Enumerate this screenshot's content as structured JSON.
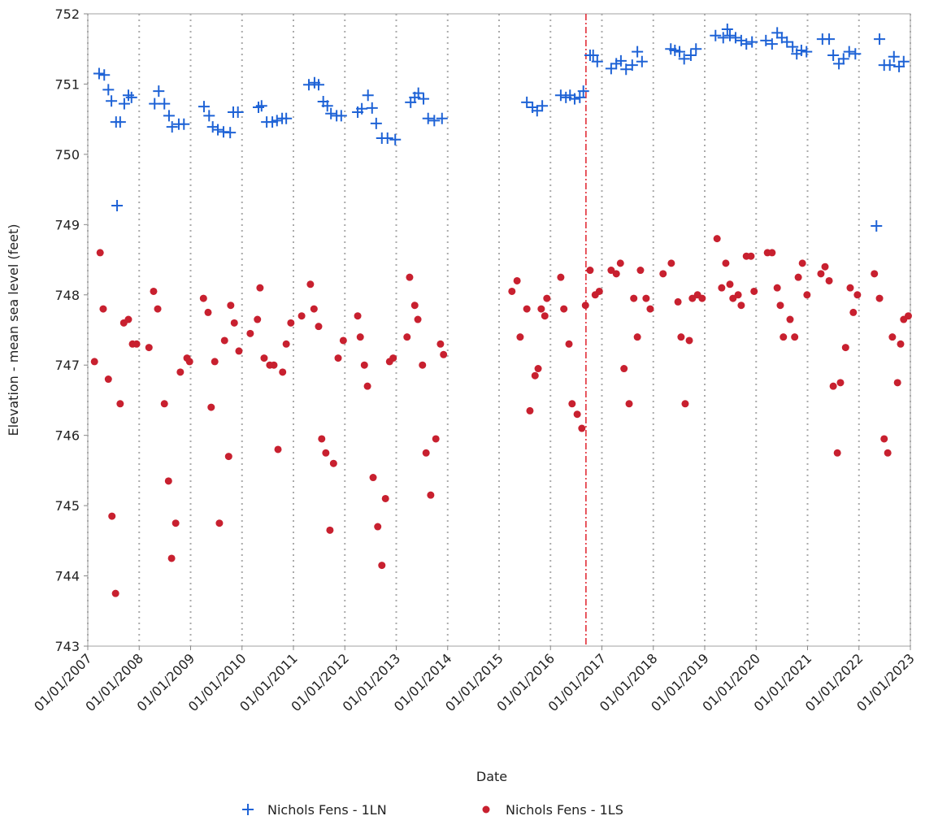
{
  "chart_data": {
    "type": "scatter",
    "x_label": "Date",
    "y_label": "Elevation - mean sea level (feet)",
    "xlim": [
      2007,
      2023
    ],
    "ylim": [
      743,
      752
    ],
    "xticks": [
      {
        "value": 2007,
        "label": "01/01/2007"
      },
      {
        "value": 2008,
        "label": "01/01/2008"
      },
      {
        "value": 2009,
        "label": "01/01/2009"
      },
      {
        "value": 2010,
        "label": "01/01/2010"
      },
      {
        "value": 2011,
        "label": "01/01/2011"
      },
      {
        "value": 2012,
        "label": "01/01/2012"
      },
      {
        "value": 2013,
        "label": "01/01/2013"
      },
      {
        "value": 2014,
        "label": "01/01/2014"
      },
      {
        "value": 2015,
        "label": "01/01/2015"
      },
      {
        "value": 2016,
        "label": "01/01/2016"
      },
      {
        "value": 2017,
        "label": "01/01/2017"
      },
      {
        "value": 2018,
        "label": "01/01/2018"
      },
      {
        "value": 2019,
        "label": "01/01/2019"
      },
      {
        "value": 2020,
        "label": "01/01/2020"
      },
      {
        "value": 2021,
        "label": "01/01/2021"
      },
      {
        "value": 2022,
        "label": "01/01/2022"
      },
      {
        "value": 2023,
        "label": "01/01/2023"
      }
    ],
    "yticks": [
      743,
      744,
      745,
      746,
      747,
      748,
      749,
      750,
      751,
      752
    ],
    "x_grid": true,
    "ref_line_x": 2016.69,
    "ref_line_color": "#e0202a",
    "legend": "bottom",
    "series": [
      {
        "name": "Nichols Fens - 1LN",
        "color": "#1f63d6",
        "marker": "plus",
        "x": [
          2007.22,
          2007.32,
          2007.4,
          2007.46,
          2007.55,
          2007.63,
          2007.57,
          2007.71,
          2007.79,
          2007.85,
          2008.3,
          2008.38,
          2008.49,
          2008.58,
          2008.64,
          2008.77,
          2008.87,
          2009.26,
          2009.36,
          2009.43,
          2009.53,
          2009.64,
          2009.77,
          2009.83,
          2009.92,
          2010.32,
          2010.38,
          2010.48,
          2010.59,
          2010.68,
          2010.78,
          2010.86,
          2011.3,
          2011.41,
          2011.49,
          2011.58,
          2011.66,
          2011.73,
          2011.84,
          2011.93,
          2012.25,
          2012.33,
          2012.45,
          2012.53,
          2012.61,
          2012.72,
          2012.83,
          2012.98,
          2013.28,
          2013.36,
          2013.43,
          2013.53,
          2013.62,
          2013.74,
          2013.89,
          2015.54,
          2015.65,
          2015.74,
          2015.84,
          2016.2,
          2016.3,
          2016.38,
          2016.47,
          2016.57,
          2016.64,
          2016.77,
          2016.83,
          2016.91,
          2017.18,
          2017.28,
          2017.37,
          2017.47,
          2017.59,
          2017.69,
          2017.78,
          2018.34,
          2018.42,
          2018.51,
          2018.6,
          2018.73,
          2018.83,
          2019.21,
          2019.36,
          2019.44,
          2019.49,
          2019.6,
          2019.71,
          2019.81,
          2019.92,
          2020.19,
          2020.31,
          2020.41,
          2020.5,
          2020.6,
          2020.71,
          2020.79,
          2020.88,
          2020.98,
          2021.29,
          2021.42,
          2021.5,
          2021.61,
          2021.7,
          2021.81,
          2021.93,
          2022.34,
          2022.4,
          2022.49,
          2022.6,
          2022.68,
          2022.78,
          2022.87
        ],
        "values": [
          751.15,
          751.13,
          750.92,
          750.76,
          750.46,
          750.46,
          749.27,
          750.72,
          750.84,
          750.81,
          750.72,
          750.9,
          750.72,
          750.55,
          750.39,
          750.43,
          750.43,
          750.68,
          750.55,
          750.39,
          750.35,
          750.32,
          750.31,
          750.6,
          750.6,
          750.67,
          750.69,
          750.46,
          750.46,
          750.48,
          750.51,
          750.51,
          750.99,
          751.02,
          750.99,
          750.75,
          750.69,
          750.58,
          750.55,
          750.55,
          750.6,
          750.65,
          750.84,
          750.66,
          750.44,
          750.23,
          750.23,
          750.21,
          750.74,
          750.81,
          750.87,
          750.79,
          750.51,
          750.48,
          750.51,
          750.74,
          750.67,
          750.62,
          750.69,
          750.84,
          750.81,
          750.84,
          750.79,
          750.81,
          750.9,
          751.41,
          751.41,
          751.32,
          751.22,
          751.29,
          751.33,
          751.21,
          751.27,
          751.46,
          751.32,
          751.5,
          751.48,
          751.46,
          751.36,
          751.41,
          751.5,
          751.69,
          751.66,
          751.78,
          751.69,
          751.66,
          751.62,
          751.57,
          751.6,
          751.62,
          751.57,
          751.73,
          751.66,
          751.6,
          751.53,
          751.43,
          751.48,
          751.46,
          751.64,
          751.64,
          751.41,
          751.29,
          751.36,
          751.46,
          751.43,
          748.98,
          751.64,
          751.27,
          751.27,
          751.39,
          751.25,
          751.32
        ]
      },
      {
        "name": "Nichols Fens - 1LS",
        "color": "#c8202f",
        "marker": "circle",
        "x": [
          2007.13,
          2007.24,
          2007.3,
          2007.4,
          2007.47,
          2007.54,
          2007.63,
          2007.7,
          2007.79,
          2007.87,
          2007.95,
          2008.19,
          2008.28,
          2008.36,
          2008.49,
          2008.57,
          2008.63,
          2008.71,
          2008.8,
          2008.93,
          2008.98,
          2009.25,
          2009.34,
          2009.4,
          2009.47,
          2009.56,
          2009.66,
          2009.74,
          2009.78,
          2009.85,
          2009.94,
          2010.16,
          2010.3,
          2010.35,
          2010.43,
          2010.54,
          2010.62,
          2010.7,
          2010.79,
          2010.86,
          2010.95,
          2011.16,
          2011.33,
          2011.4,
          2011.49,
          2011.55,
          2011.63,
          2011.71,
          2011.78,
          2011.87,
          2011.97,
          2012.25,
          2012.3,
          2012.38,
          2012.44,
          2012.55,
          2012.64,
          2012.72,
          2012.79,
          2012.87,
          2012.94,
          2013.21,
          2013.26,
          2013.36,
          2013.42,
          2013.51,
          2013.58,
          2013.67,
          2013.77,
          2013.86,
          2013.92,
          2015.25,
          2015.35,
          2015.41,
          2015.54,
          2015.6,
          2015.7,
          2015.76,
          2015.82,
          2015.89,
          2015.93,
          2016.2,
          2016.26,
          2016.36,
          2016.42,
          2016.52,
          2016.61,
          2016.68,
          2016.77,
          2016.87,
          2016.95,
          2017.18,
          2017.28,
          2017.36,
          2017.43,
          2017.53,
          2017.62,
          2017.69,
          2017.75,
          2017.86,
          2017.94,
          2018.19,
          2018.35,
          2018.48,
          2018.54,
          2018.62,
          2018.7,
          2018.76,
          2018.86,
          2018.95,
          2019.24,
          2019.33,
          2019.41,
          2019.49,
          2019.55,
          2019.65,
          2019.71,
          2019.81,
          2019.9,
          2019.96,
          2020.22,
          2020.31,
          2020.41,
          2020.47,
          2020.53,
          2020.66,
          2020.75,
          2020.82,
          2020.9,
          2020.99,
          2021.26,
          2021.34,
          2021.42,
          2021.5,
          2021.58,
          2021.64,
          2021.74,
          2021.83,
          2021.89,
          2021.97,
          2022.3,
          2022.4,
          2022.49,
          2022.56,
          2022.65,
          2022.75,
          2022.81,
          2022.87,
          2022.96
        ],
        "values": [
          747.05,
          748.6,
          747.8,
          746.8,
          744.85,
          743.75,
          746.45,
          747.6,
          747.65,
          747.3,
          747.3,
          747.25,
          748.05,
          747.8,
          746.45,
          745.35,
          744.25,
          744.75,
          746.9,
          747.1,
          747.05,
          747.95,
          747.75,
          746.4,
          747.05,
          744.75,
          747.35,
          745.7,
          747.85,
          747.6,
          747.2,
          747.45,
          747.65,
          748.1,
          747.1,
          747.0,
          747.0,
          745.8,
          746.9,
          747.3,
          747.6,
          747.7,
          748.15,
          747.8,
          747.55,
          745.95,
          745.75,
          744.65,
          745.6,
          747.1,
          747.35,
          747.7,
          747.4,
          747.0,
          746.7,
          745.4,
          744.7,
          744.15,
          745.1,
          747.05,
          747.1,
          747.4,
          748.25,
          747.85,
          747.65,
          747.0,
          745.75,
          745.15,
          745.95,
          747.3,
          747.15,
          748.05,
          748.2,
          747.4,
          747.8,
          746.35,
          746.85,
          746.95,
          747.8,
          747.7,
          747.95,
          748.25,
          747.8,
          747.3,
          746.45,
          746.3,
          746.1,
          747.85,
          748.35,
          748.0,
          748.05,
          748.35,
          748.3,
          748.45,
          746.95,
          746.45,
          747.95,
          747.4,
          748.35,
          747.95,
          747.8,
          748.3,
          748.45,
          747.9,
          747.4,
          746.45,
          747.35,
          747.95,
          748.0,
          747.95,
          748.8,
          748.1,
          748.45,
          748.15,
          747.95,
          748.0,
          747.85,
          748.55,
          748.55,
          748.05,
          748.6,
          748.6,
          748.1,
          747.85,
          747.4,
          747.65,
          747.4,
          748.25,
          748.45,
          748.0,
          748.3,
          748.4,
          748.2,
          746.7,
          745.75,
          746.75,
          747.25,
          748.1,
          747.75,
          748.0,
          748.3,
          747.95,
          745.95,
          745.75,
          747.4,
          746.75,
          747.3,
          747.65,
          747.7
        ]
      }
    ]
  }
}
